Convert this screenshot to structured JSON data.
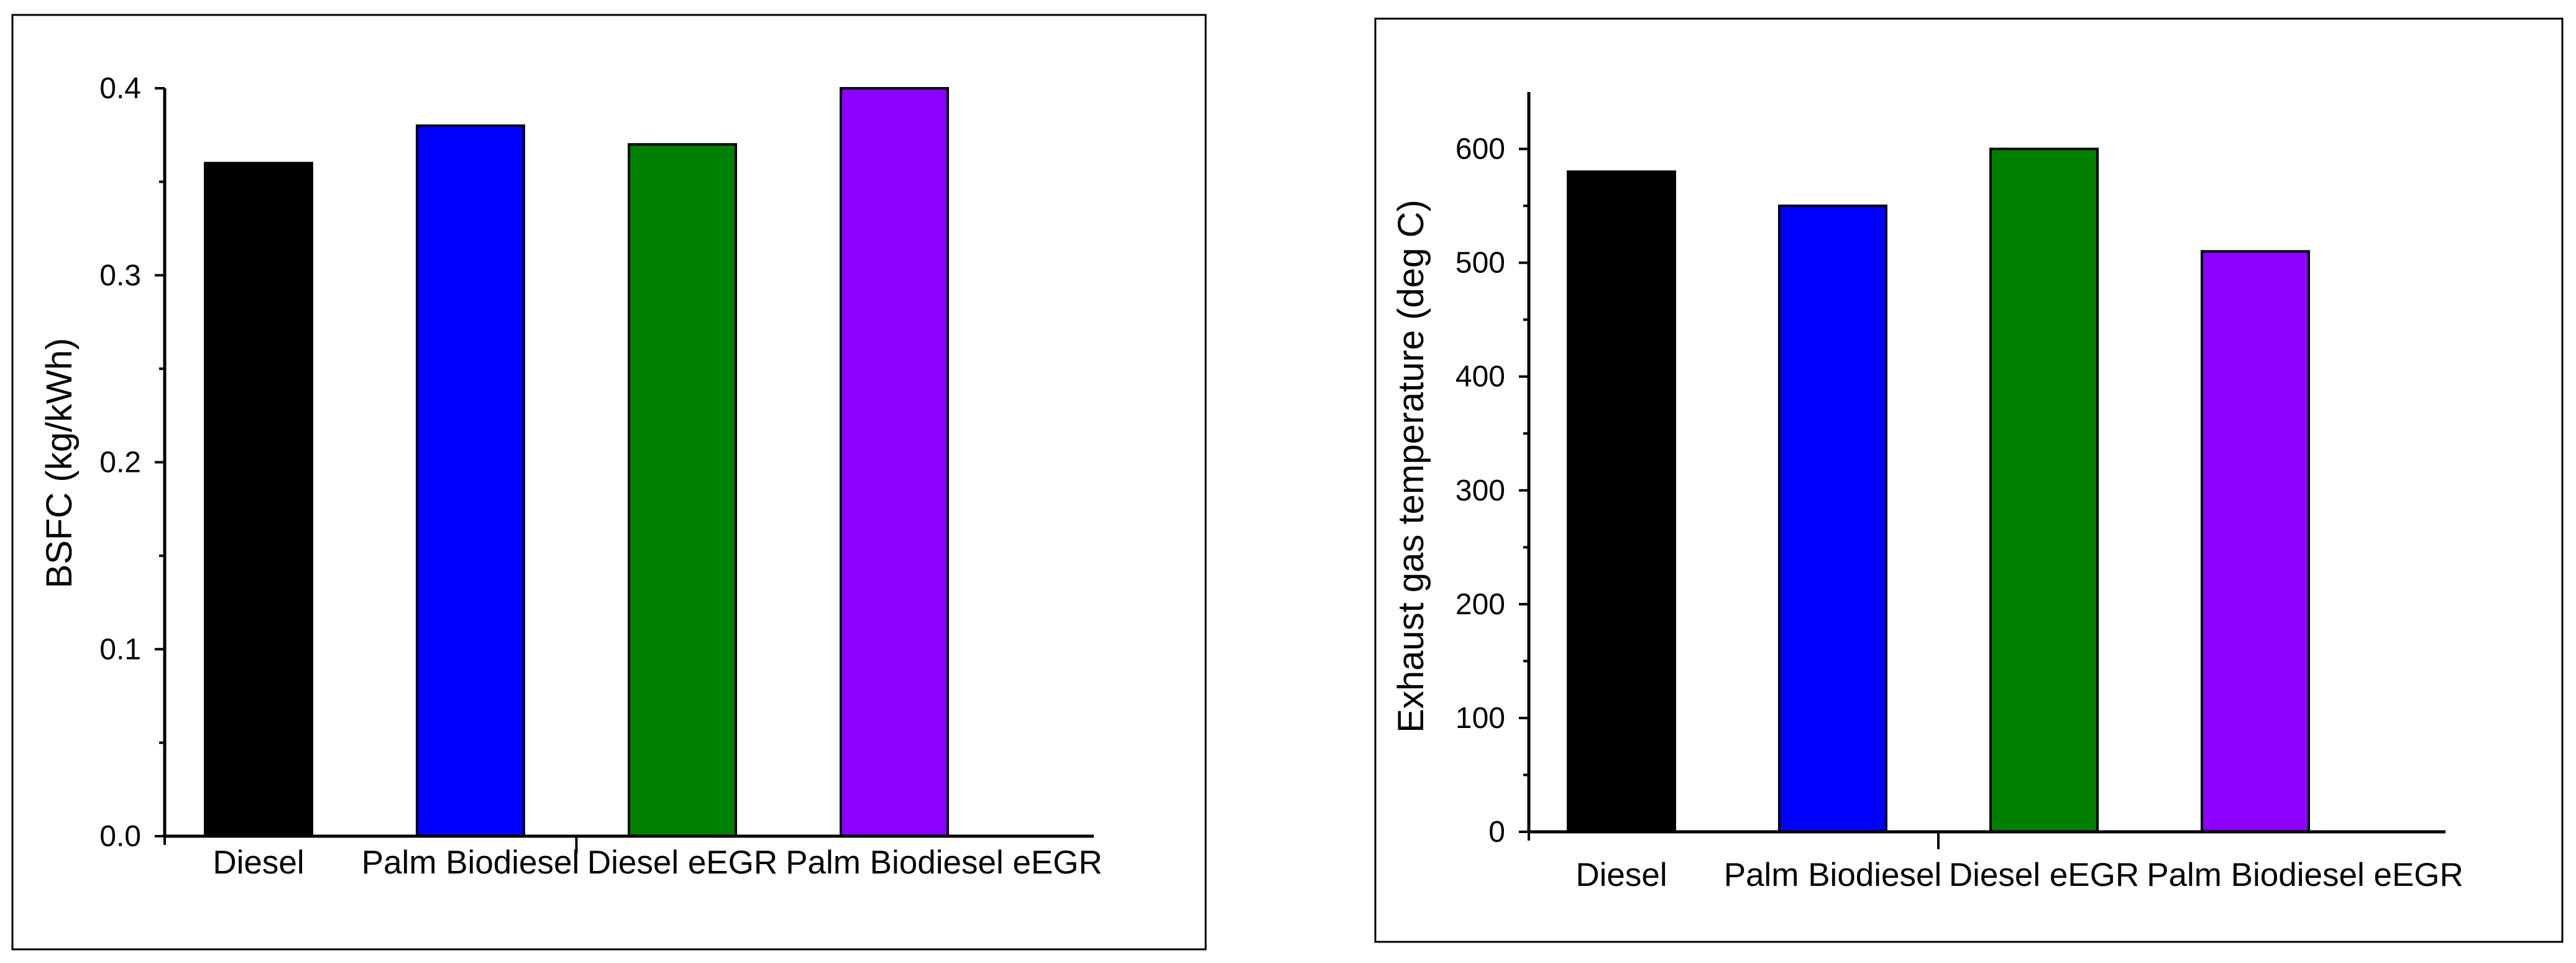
{
  "chart_data": [
    {
      "type": "bar",
      "title": "",
      "xlabel": "",
      "ylabel": "BSFC (kg/kWh)",
      "ylim": [
        0,
        0.4
      ],
      "yticks": [
        0.0,
        0.1,
        0.2,
        0.3,
        0.4
      ],
      "ytick_labels": [
        "0.0",
        "0.1",
        "0.2",
        "0.3",
        "0.4"
      ],
      "categories": [
        "Diesel",
        "Palm Biodiesel",
        "Diesel eEGR",
        "Palm Biodiesel eEGR"
      ],
      "values": [
        0.36,
        0.38,
        0.37,
        0.4
      ],
      "bar_colors": [
        "#000000",
        "#0000ff",
        "#008000",
        "#8b00ff"
      ],
      "grid": false
    },
    {
      "type": "bar",
      "title": "",
      "xlabel": "",
      "ylabel": "Exhaust gas temperature (deg C)",
      "ylim": [
        0,
        650
      ],
      "yticks": [
        0,
        100,
        200,
        300,
        400,
        500,
        600
      ],
      "ytick_labels": [
        "0",
        "100",
        "200",
        "300",
        "400",
        "500",
        "600"
      ],
      "categories": [
        "Diesel",
        "Palm Biodiesel",
        "Diesel eEGR",
        "Palm Biodiesel eEGR"
      ],
      "values": [
        580,
        550,
        600,
        510
      ],
      "bar_colors": [
        "#000000",
        "#0000ff",
        "#008000",
        "#8b00ff"
      ],
      "grid": false
    }
  ]
}
